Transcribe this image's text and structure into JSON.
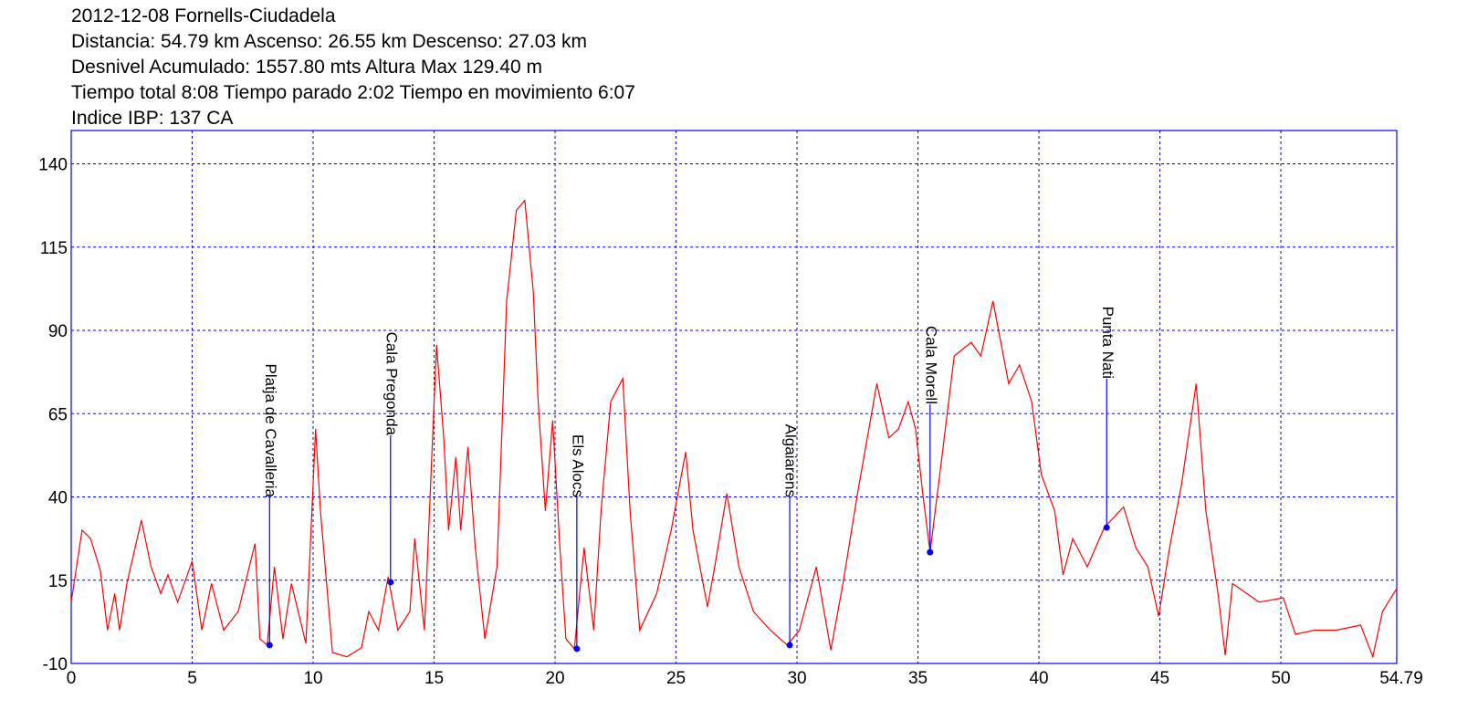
{
  "header": {
    "lines": [
      "2012-12-08 Fornells-Ciudadela",
      "Distancia: 54.79 km Ascenso: 26.55 km Descenso: 27.03 km",
      "Desnivel Acumulado: 1557.80 mts  Altura Max 129.40 m",
      "Tiempo total 8:08 Tiempo parado 2:02 Tiempo en movimiento 6:07",
      "Indice IBP: 137 CA"
    ]
  },
  "chart_data": {
    "type": "line",
    "color": "#ff0000",
    "grid": true,
    "xlim": [
      0,
      54.79
    ],
    "ylim": [
      -10,
      150
    ],
    "xticks": [
      0,
      5,
      10,
      15,
      20,
      25,
      30,
      35,
      40,
      45,
      50,
      54.79
    ],
    "yticks": [
      -10,
      15,
      40,
      65,
      90,
      115,
      140
    ],
    "x": [
      0,
      0.45,
      0.8,
      1.2,
      1.5,
      1.8,
      2.0,
      2.3,
      2.9,
      3.3,
      3.7,
      4.0,
      4.4,
      5.0,
      5.4,
      5.8,
      6.3,
      6.9,
      7.6,
      7.8,
      8.1,
      8.4,
      8.75,
      9.1,
      9.7,
      10.1,
      10.3,
      10.8,
      11.4,
      12.0,
      12.3,
      12.7,
      13.1,
      13.5,
      14.0,
      14.2,
      14.6,
      15.1,
      15.4,
      15.6,
      15.9,
      16.1,
      16.4,
      16.7,
      17.1,
      17.6,
      18.0,
      18.4,
      18.75,
      19.1,
      19.3,
      19.6,
      19.9,
      20.2,
      20.45,
      20.8,
      21.2,
      21.6,
      21.9,
      22.3,
      22.8,
      23.1,
      23.5,
      24.2,
      24.8,
      25.4,
      25.7,
      26.3,
      26.6,
      27.1,
      27.6,
      28.2,
      28.9,
      29.6,
      30.1,
      30.8,
      31.4,
      31.9,
      32.5,
      33.3,
      33.8,
      34.2,
      34.6,
      34.9,
      35.2,
      35.5,
      35.9,
      36.5,
      37.2,
      37.6,
      38.1,
      38.75,
      39.2,
      39.7,
      40.1,
      40.65,
      41.0,
      41.4,
      42.0,
      42.7,
      43.5,
      44.0,
      44.5,
      44.95,
      45.4,
      45.9,
      46.5,
      46.9,
      47.4,
      47.7,
      48.0,
      49.1,
      50.1,
      50.6,
      51.4,
      52.3,
      53.3,
      53.8,
      54.2,
      54.79
    ],
    "values": [
      8.4,
      30,
      27.5,
      18,
      0,
      11,
      0,
      14,
      33,
      19,
      11,
      16.6,
      8.4,
      20.7,
      0,
      14,
      0,
      5.6,
      26,
      -2.6,
      -4.5,
      19,
      -2.6,
      14,
      -4,
      60.4,
      35.8,
      -6.7,
      -8,
      -5.3,
      5.6,
      0,
      16,
      0,
      5.6,
      27.5,
      0,
      85.6,
      57.7,
      30,
      52,
      30,
      55,
      24.8,
      -2.6,
      19,
      98.8,
      126,
      129,
      101.5,
      68.6,
      35.8,
      63,
      24.8,
      -2.6,
      -5.6,
      24.8,
      0,
      35.8,
      68.6,
      75.5,
      35.8,
      0,
      11,
      30,
      53.5,
      30,
      7,
      19,
      41,
      19,
      5.6,
      0,
      -4.5,
      0,
      19,
      -6,
      14,
      41,
      74,
      57.7,
      60.4,
      68.6,
      60.4,
      41,
      23.4,
      46.7,
      82.3,
      86.4,
      82.3,
      98.8,
      74,
      79.6,
      68.6,
      46.7,
      35.8,
      16.6,
      27.5,
      19,
      30.8,
      37,
      24.8,
      19,
      4.2,
      24.8,
      44,
      74,
      35.8,
      11,
      -7.5,
      14,
      8.4,
      9.7,
      -1.2,
      0,
      0,
      1.5,
      -8,
      5.6,
      12.5
    ],
    "waypoints": [
      {
        "name": "Platja de Cavalleria",
        "x": 8.2,
        "y": -4.5
      },
      {
        "name": "Cala Pregonda",
        "x": 13.2,
        "y": 14.4
      },
      {
        "name": "Els Alocs",
        "x": 20.9,
        "y": -5.6
      },
      {
        "name": "Algaiarens",
        "x": 29.7,
        "y": -4.5
      },
      {
        "name": "Cala Morell",
        "x": 35.5,
        "y": 23.4
      },
      {
        "name": "Punta Nati",
        "x": 42.8,
        "y": 30.8
      }
    ]
  }
}
